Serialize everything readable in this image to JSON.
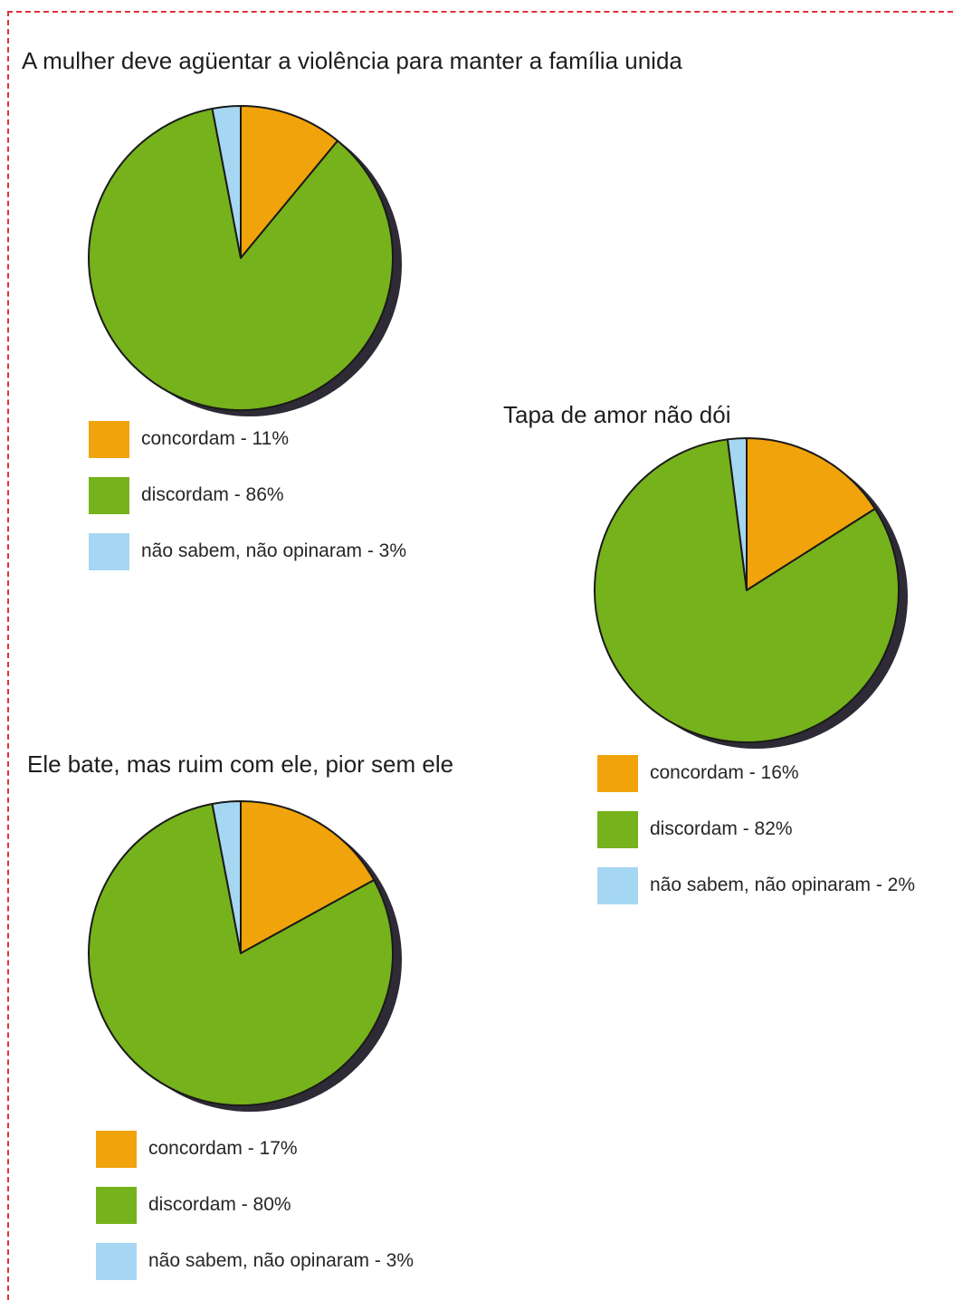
{
  "colors": {
    "concordam": "#f0a30a",
    "discordam": "#76b21c",
    "nao_sabem": "#a6d7f2",
    "outline": "#1a1a1a",
    "shadow": "#2e2a36",
    "frame": "#e0303e"
  },
  "chart_data": [
    {
      "type": "pie",
      "title": "A mulher deve agüentar a violência para manter a família unida",
      "series": [
        {
          "label": "concordam - 11%",
          "value": 11,
          "color": "#f0a30a"
        },
        {
          "label": "discordam - 86%",
          "value": 86,
          "color": "#76b21c"
        },
        {
          "label": "não sabem, não opinaram - 3%",
          "value": 3,
          "color": "#a6d7f2"
        }
      ]
    },
    {
      "type": "pie",
      "title": "Tapa de amor não dói",
      "series": [
        {
          "label": "concordam - 16%",
          "value": 16,
          "color": "#f0a30a"
        },
        {
          "label": "discordam - 82%",
          "value": 82,
          "color": "#76b21c"
        },
        {
          "label": "não sabem, não opinaram - 2%",
          "value": 2,
          "color": "#a6d7f2"
        }
      ]
    },
    {
      "type": "pie",
      "title": "Ele bate, mas ruim com ele, pior sem ele",
      "series": [
        {
          "label": "concordam - 17%",
          "value": 17,
          "color": "#f0a30a"
        },
        {
          "label": "discordam - 80%",
          "value": 80,
          "color": "#76b21c"
        },
        {
          "label": "não sabem, não opinaram - 3%",
          "value": 3,
          "color": "#a6d7f2"
        }
      ]
    }
  ]
}
